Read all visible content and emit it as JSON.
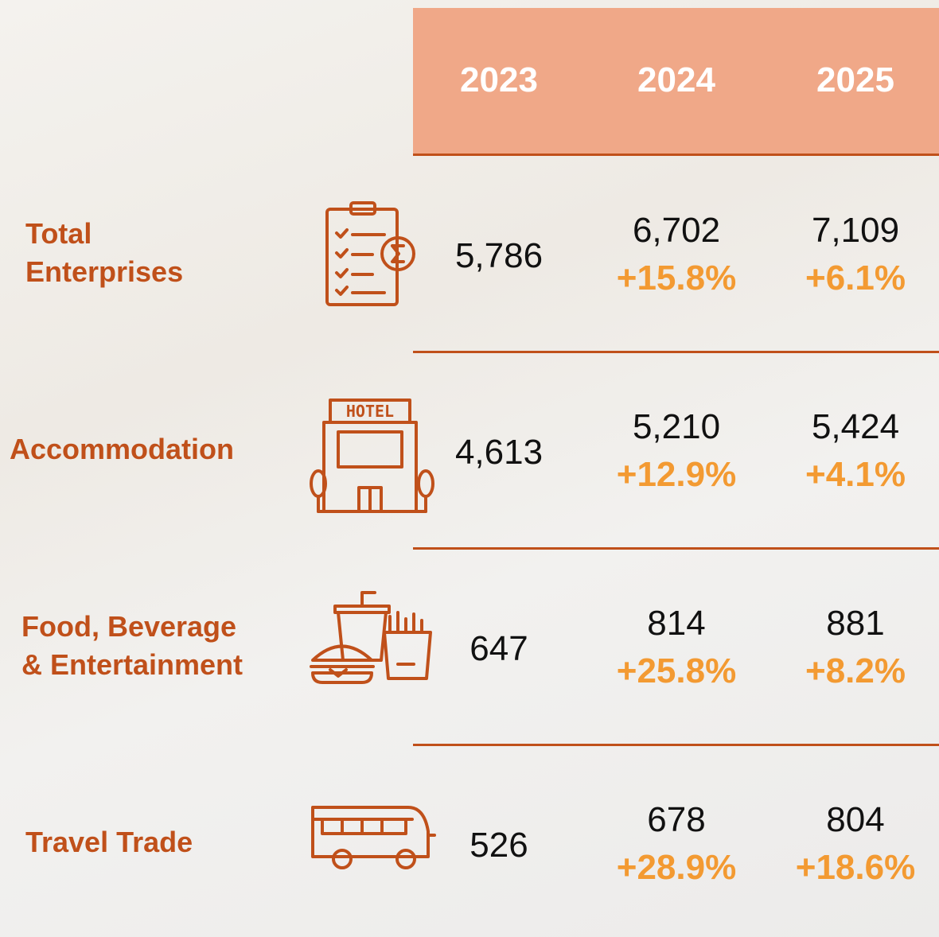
{
  "table": {
    "columns": [
      "2023",
      "2024",
      "2025"
    ],
    "rows": [
      {
        "label": [
          "Total",
          "Enterprises"
        ],
        "values": [
          "5,786",
          "6,702",
          "7,109"
        ],
        "changes": [
          "+15.8%",
          "+6.1%"
        ]
      },
      {
        "label": [
          "Accommodation"
        ],
        "values": [
          "4,613",
          "5,210",
          "5,424"
        ],
        "changes": [
          "+12.9%",
          "+4.1%"
        ]
      },
      {
        "label": [
          "Food, Beverage",
          "& Entertainment"
        ],
        "values": [
          "647",
          "814",
          "881"
        ],
        "changes": [
          "+25.8%",
          "+8.2%"
        ]
      },
      {
        "label": [
          "Travel Trade"
        ],
        "values": [
          "526",
          "678",
          "804"
        ],
        "changes": [
          "+28.9%",
          "+18.6%"
        ]
      }
    ]
  }
}
